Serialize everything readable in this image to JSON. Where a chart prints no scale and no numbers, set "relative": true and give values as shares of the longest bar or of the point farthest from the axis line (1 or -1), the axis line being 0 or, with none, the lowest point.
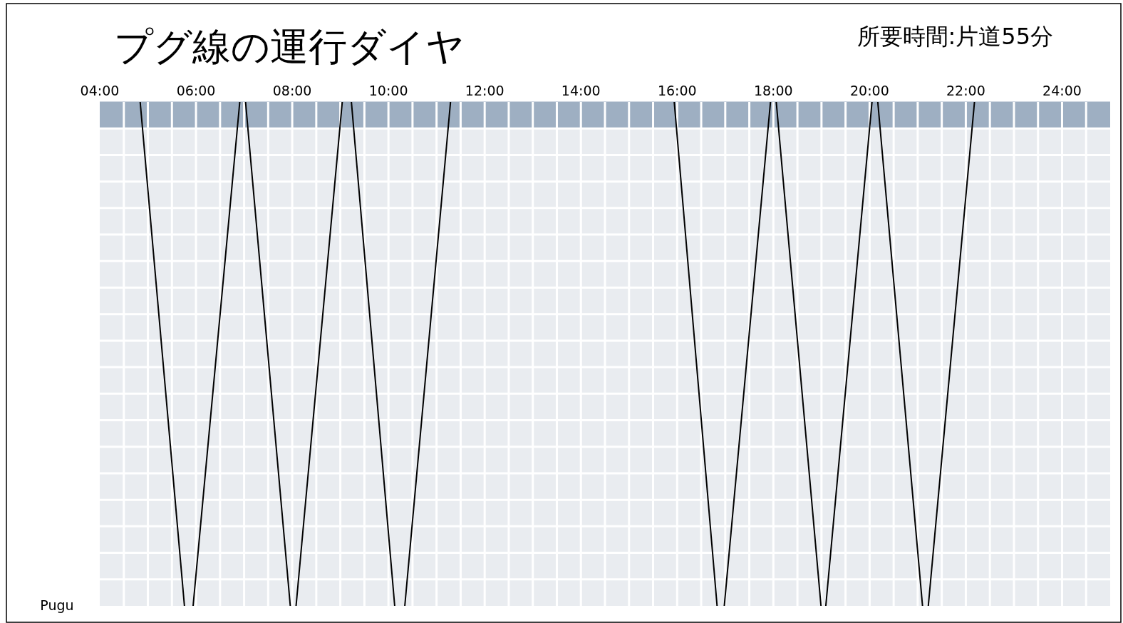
{
  "chart_data": {
    "type": "line",
    "title": "プグ線の運行ダイヤ",
    "subtitle": "所要時間:片道55分",
    "relative": true,
    "xlim": [
      4,
      25
    ],
    "xticks": [
      {
        "value": 4,
        "label": "04:00"
      },
      {
        "value": 6,
        "label": "06:00"
      },
      {
        "value": 8,
        "label": "08:00"
      },
      {
        "value": 10,
        "label": "10:00"
      },
      {
        "value": 12,
        "label": "12:00"
      },
      {
        "value": 14,
        "label": "14:00"
      },
      {
        "value": 16,
        "label": "16:00"
      },
      {
        "value": 18,
        "label": "18:00"
      },
      {
        "value": 20,
        "label": "20:00"
      },
      {
        "value": 22,
        "label": "22:00"
      },
      {
        "value": 24,
        "label": "24:00"
      }
    ],
    "tick_labels": "x",
    "grid": true,
    "marker": "none",
    "line_style": "solid",
    "annotations": [
      "Pugu"
    ],
    "bands": [
      {
        "axis": "y",
        "from": 0.947,
        "to": 1,
        "color": "#9eafc2"
      }
    ],
    "series": [
      {
        "color": "#000000",
        "x": [
          4.84,
          5.76
        ],
        "values": [
          1,
          0
        ]
      },
      {
        "color": "#000000",
        "x": [
          5.94,
          6.91
        ],
        "values": [
          0,
          1
        ]
      },
      {
        "color": "#000000",
        "x": [
          7.03,
          7.96
        ],
        "values": [
          1,
          0
        ]
      },
      {
        "color": "#000000",
        "x": [
          8.08,
          9.04
        ],
        "values": [
          0,
          1
        ]
      },
      {
        "color": "#000000",
        "x": [
          9.23,
          10.13
        ],
        "values": [
          1,
          0
        ]
      },
      {
        "color": "#000000",
        "x": [
          10.34,
          11.29
        ],
        "values": [
          0,
          1
        ]
      },
      {
        "color": "#000000",
        "x": [
          15.94,
          16.83
        ],
        "values": [
          1,
          0
        ]
      },
      {
        "color": "#000000",
        "x": [
          16.98,
          17.94
        ],
        "values": [
          0,
          1
        ]
      },
      {
        "color": "#000000",
        "x": [
          18.06,
          18.99
        ],
        "values": [
          1,
          0
        ]
      },
      {
        "color": "#000000",
        "x": [
          19.09,
          20.05
        ],
        "values": [
          0,
          1
        ]
      },
      {
        "color": "#000000",
        "x": [
          20.17,
          21.1
        ],
        "values": [
          1,
          0
        ]
      },
      {
        "color": "#000000",
        "x": [
          21.22,
          22.18
        ],
        "values": [
          0,
          1
        ]
      }
    ]
  }
}
